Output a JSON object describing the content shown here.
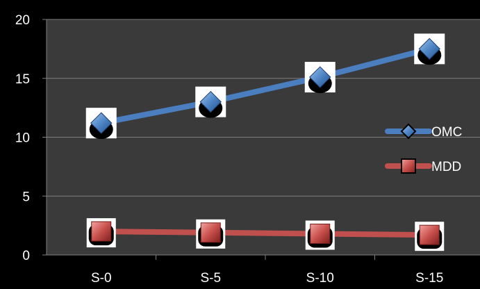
{
  "chart_data": {
    "type": "line",
    "categories": [
      "S-0",
      "S-5",
      "S-10",
      "S-15"
    ],
    "series": [
      {
        "name": "OMC",
        "values": [
          11.2,
          13.0,
          15.1,
          17.5
        ],
        "color": "#4a7ebf",
        "marker": "diamond"
      },
      {
        "name": "MDD",
        "values": [
          2.0,
          1.9,
          1.8,
          1.7
        ],
        "color": "#c0504d",
        "marker": "square"
      }
    ],
    "ylim": [
      0,
      20
    ],
    "yticks": [
      0,
      5,
      10,
      15,
      20
    ],
    "grid": true,
    "legend_placement": "right",
    "plot_background": "#3a3a3a",
    "background": "#000000",
    "grid_color": "#7f7f7f",
    "text_color": "#ffffff"
  }
}
